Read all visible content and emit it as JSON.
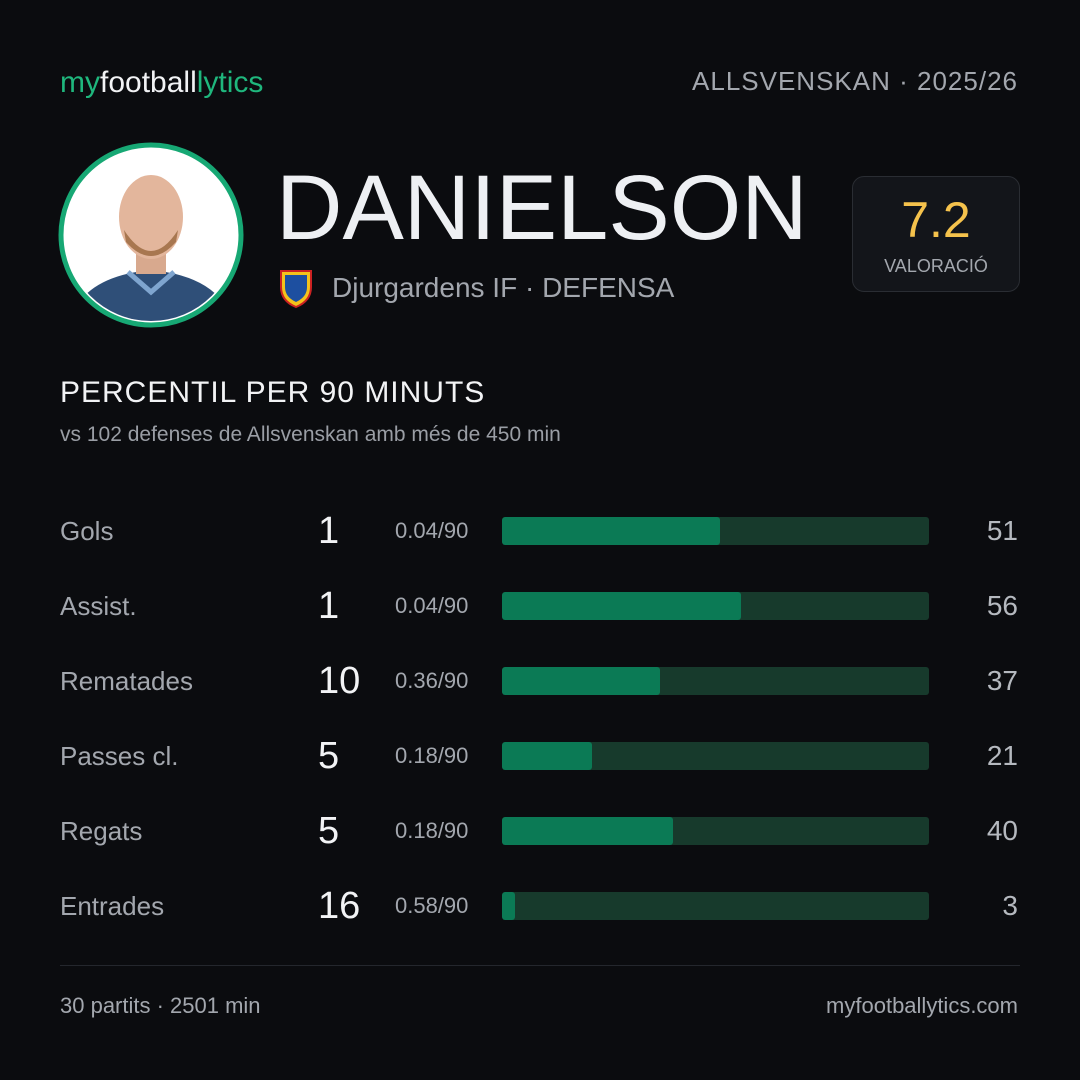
{
  "header": {
    "brand": [
      "my",
      "football",
      "lytics"
    ],
    "league": "ALLSVENSKAN",
    "season": "· 2025/26"
  },
  "player": {
    "name": "DANIELSON",
    "team": "Djurgardens IF",
    "position": "· DEFENSA",
    "rating": 7.2,
    "rating_label": "VALORACIÓ"
  },
  "section": {
    "title": "PERCENTIL PER 90 MINUTS",
    "subtitle": "vs 102 defenses de Allsvenskan amb més de 450 min"
  },
  "stats": {
    "xlim": [
      0,
      100
    ],
    "rows": [
      {
        "label": "Gols",
        "total": 1,
        "per90": "0.04/90",
        "percentile": 51
      },
      {
        "label": "Assist.",
        "total": 1,
        "per90": "0.04/90",
        "percentile": 56
      },
      {
        "label": "Rematades",
        "total": 10,
        "per90": "0.36/90",
        "percentile": 37
      },
      {
        "label": "Passes cl.",
        "total": 5,
        "per90": "0.18/90",
        "percentile": 21
      },
      {
        "label": "Regats",
        "total": 5,
        "per90": "0.18/90",
        "percentile": 40
      },
      {
        "label": "Entrades",
        "total": 16,
        "per90": "0.58/90",
        "percentile": 3
      }
    ]
  },
  "footer": {
    "summary": "30 partits · 2501 min",
    "site": "myfootballytics.com"
  }
}
